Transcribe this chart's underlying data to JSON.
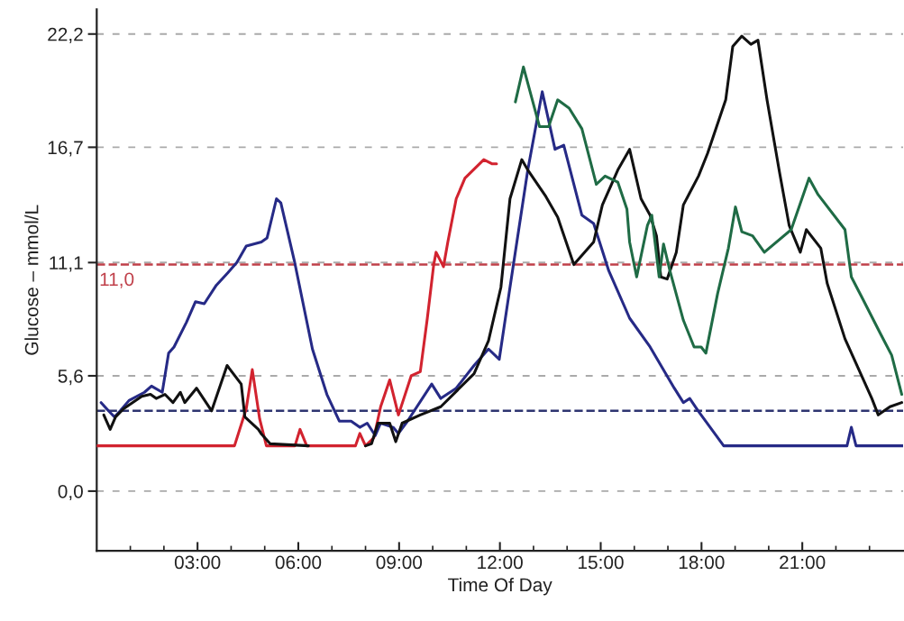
{
  "chart_data": {
    "type": "line",
    "xlabel": "Time Of Day",
    "ylabel": "Glucose – mmol/L",
    "xlim": [
      0,
      24
    ],
    "ylim": [
      -2.9,
      23.4
    ],
    "xticks": [
      {
        "value": 1,
        "label": null
      },
      {
        "value": 2,
        "label": null
      },
      {
        "value": 3,
        "label": "03:00"
      },
      {
        "value": 4,
        "label": null
      },
      {
        "value": 5,
        "label": null
      },
      {
        "value": 6,
        "label": "06:00"
      },
      {
        "value": 7,
        "label": null
      },
      {
        "value": 8,
        "label": null
      },
      {
        "value": 9,
        "label": "09:00"
      },
      {
        "value": 10,
        "label": null
      },
      {
        "value": 11,
        "label": null
      },
      {
        "value": 12,
        "label": "12:00"
      },
      {
        "value": 13,
        "label": null
      },
      {
        "value": 14,
        "label": null
      },
      {
        "value": 15,
        "label": "15:00"
      },
      {
        "value": 16,
        "label": null
      },
      {
        "value": 17,
        "label": null
      },
      {
        "value": 18,
        "label": "18:00"
      },
      {
        "value": 19,
        "label": null
      },
      {
        "value": 20,
        "label": null
      },
      {
        "value": 21,
        "label": "21:00"
      },
      {
        "value": 22,
        "label": null
      },
      {
        "value": 23,
        "label": null
      }
    ],
    "yticks": [
      {
        "value": 0,
        "label": "0,0"
      },
      {
        "value": 5.6,
        "label": "5,6"
      },
      {
        "value": 11.1,
        "label": "11,1"
      },
      {
        "value": 16.7,
        "label": "16,7"
      },
      {
        "value": 22.2,
        "label": "22,2"
      }
    ],
    "grid": "y",
    "legend": false,
    "marker": "none",
    "line_style": "solid",
    "ref_lines": [
      {
        "axis": "y",
        "value": 11.0,
        "label": "11,0",
        "color": "#c0404a",
        "line_style": "dashed"
      },
      {
        "axis": "y",
        "value": 3.9,
        "color": "#2e3570",
        "line_style": "dashed"
      }
    ],
    "series": [
      {
        "color": "#d2232f",
        "x": [
          0.0,
          4.1,
          4.45,
          4.63,
          4.85,
          5.05,
          5.9,
          6.05,
          6.25,
          7.7,
          7.83,
          8.0,
          8.25,
          8.45,
          8.72,
          8.98,
          9.36,
          9.63,
          9.84,
          10.03,
          10.1,
          10.32,
          10.45,
          10.7,
          10.96,
          11.52,
          11.76,
          11.9
        ],
        "values": [
          2.2,
          2.2,
          4.0,
          5.9,
          3.5,
          2.2,
          2.2,
          3.0,
          2.2,
          2.2,
          2.8,
          2.2,
          2.6,
          4.1,
          5.4,
          3.7,
          5.6,
          5.8,
          8.4,
          11.0,
          11.6,
          10.9,
          12.1,
          14.2,
          15.2,
          16.1,
          15.9,
          15.9
        ]
      },
      {
        "color": "#262a86",
        "x": [
          0.13,
          0.35,
          0.53,
          0.7,
          0.96,
          1.42,
          1.63,
          1.95,
          2.14,
          2.3,
          2.67,
          2.94,
          3.2,
          3.56,
          3.9,
          4.17,
          4.45,
          4.9,
          5.07,
          5.35,
          5.48,
          5.88,
          6.42,
          6.85,
          7.22,
          7.57,
          7.83,
          8.05,
          8.29,
          8.45,
          8.82,
          8.98,
          9.25,
          9.97,
          10.24,
          10.7,
          11.23,
          11.66,
          11.98,
          12.3,
          12.83,
          13.26,
          13.45,
          13.64,
          13.9,
          14.44,
          14.79,
          15.24,
          15.86,
          16.47,
          17.19,
          17.46,
          17.65,
          17.9,
          18.66,
          22.33,
          22.46,
          22.6,
          24.0
        ],
        "values": [
          4.3,
          3.9,
          3.6,
          3.9,
          4.4,
          4.8,
          5.1,
          4.8,
          6.7,
          7.0,
          8.2,
          9.2,
          9.1,
          10.0,
          10.6,
          11.1,
          11.9,
          12.1,
          12.3,
          14.2,
          14.0,
          11.2,
          6.9,
          4.7,
          3.4,
          3.4,
          3.1,
          3.3,
          2.7,
          3.3,
          3.1,
          2.8,
          3.4,
          5.2,
          4.5,
          5.0,
          6.1,
          6.9,
          6.4,
          9.9,
          15.6,
          19.4,
          18.0,
          16.6,
          16.8,
          13.4,
          13.0,
          10.7,
          8.4,
          7.0,
          5.0,
          4.3,
          4.5,
          3.9,
          2.2,
          2.2,
          3.1,
          2.2,
          2.2
        ]
      },
      {
        "color": "#111111",
        "x": [
          0.21,
          0.4,
          0.56,
          0.8,
          1.34,
          1.6,
          1.77,
          2.03,
          2.27,
          2.49,
          2.62,
          2.97,
          3.42,
          3.88,
          4.3,
          4.41,
          4.81,
          4.89,
          5.16,
          6.3,
          7.0,
          8.0,
          8.18,
          8.37,
          8.72,
          8.9,
          9.09,
          9.63,
          10.24,
          11.23,
          11.66,
          12.03,
          12.3,
          12.65,
          12.83,
          13.37,
          13.72,
          14.2,
          14.79,
          15.05,
          15.51,
          15.86,
          16.2,
          16.47,
          16.66,
          16.79,
          16.98,
          17.25,
          17.46,
          17.91,
          18.18,
          18.45,
          18.72,
          18.93,
          19.2,
          19.47,
          19.68,
          19.95,
          20.32,
          20.61,
          20.94,
          21.12,
          21.55,
          21.74,
          22.27,
          23.07,
          23.26,
          23.61,
          23.96
        ],
        "values": [
          3.7,
          3.0,
          3.6,
          4.0,
          4.6,
          4.7,
          4.5,
          4.7,
          4.3,
          4.8,
          4.3,
          5.0,
          3.9,
          6.1,
          5.2,
          3.6,
          3.0,
          2.8,
          2.3,
          2.2,
          null,
          2.2,
          2.3,
          3.3,
          3.3,
          2.4,
          3.3,
          3.7,
          4.1,
          5.7,
          7.3,
          9.9,
          14.2,
          16.1,
          15.6,
          14.3,
          13.3,
          11.0,
          12.1,
          13.9,
          15.6,
          16.6,
          14.2,
          13.4,
          12.4,
          10.4,
          10.3,
          11.6,
          13.9,
          15.3,
          16.4,
          17.7,
          19.0,
          21.6,
          22.1,
          21.7,
          21.9,
          19.0,
          15.5,
          12.9,
          11.6,
          12.7,
          11.8,
          10.1,
          7.4,
          4.5,
          3.7,
          4.1,
          4.3
        ]
      },
      {
        "color": "#1f6b45",
        "x": [
          12.46,
          12.7,
          13.18,
          13.45,
          13.72,
          14.06,
          14.44,
          14.87,
          15.13,
          15.51,
          15.78,
          15.86,
          16.07,
          16.39,
          16.52,
          16.74,
          16.87,
          17.06,
          17.46,
          17.78,
          17.99,
          18.13,
          18.48,
          18.8,
          19.01,
          19.2,
          19.52,
          19.87,
          20.67,
          21.2,
          21.47,
          22.27,
          22.46,
          22.81,
          23.34,
          23.66,
          23.96
        ],
        "values": [
          18.9,
          20.6,
          17.7,
          17.7,
          19.0,
          18.6,
          17.6,
          14.9,
          15.3,
          15.0,
          13.7,
          12.1,
          10.4,
          12.9,
          13.4,
          10.4,
          12.0,
          10.7,
          8.3,
          7.0,
          7.0,
          6.7,
          9.6,
          11.8,
          13.8,
          12.6,
          12.4,
          11.6,
          12.7,
          15.2,
          14.4,
          12.7,
          10.4,
          9.3,
          7.6,
          6.6,
          4.7
        ]
      }
    ]
  }
}
